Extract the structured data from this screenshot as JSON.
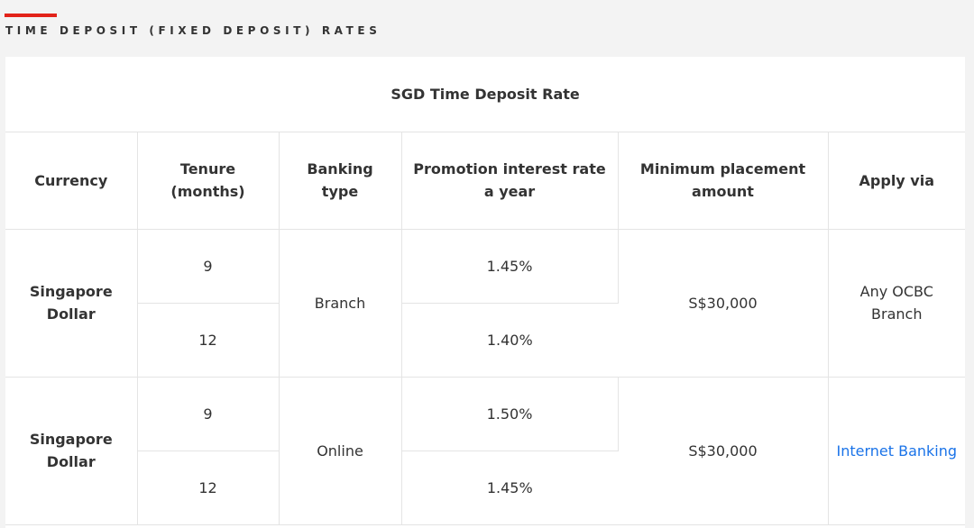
{
  "section": {
    "title": "TIME DEPOSIT (FIXED DEPOSIT) RATES",
    "accent_color": "#e2231a"
  },
  "table": {
    "caption": "SGD Time Deposit Rate",
    "headers": {
      "currency": "Currency",
      "tenure": "Tenure (months)",
      "banking_type": "Banking type",
      "rate": "Promotion interest rate a year",
      "minimum": "Minimum placement amount",
      "apply": "Apply via"
    },
    "groups": [
      {
        "currency": "Singapore Dollar",
        "banking_type": "Branch",
        "minimum": "S$30,000",
        "apply": "Any OCBC Branch",
        "apply_is_link": false,
        "rows": [
          {
            "tenure": "9",
            "rate": "1.45%"
          },
          {
            "tenure": "12",
            "rate": "1.40%"
          }
        ]
      },
      {
        "currency": "Singapore Dollar",
        "banking_type": "Online",
        "minimum": "S$30,000",
        "apply": "Internet Banking",
        "apply_is_link": true,
        "link_color": "#1a73e8",
        "rows": [
          {
            "tenure": "9",
            "rate": "1.50%"
          },
          {
            "tenure": "12",
            "rate": "1.45%"
          }
        ]
      }
    ]
  }
}
